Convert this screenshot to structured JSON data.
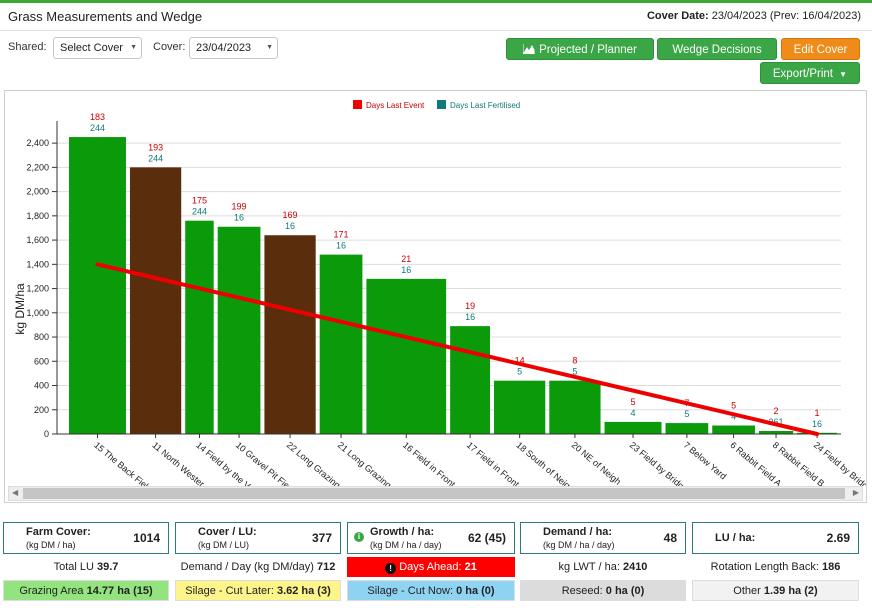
{
  "header": {
    "title": "Grass Measurements and Wedge",
    "cover_label": "Cover Date:",
    "cover_value": "23/04/2023 (Prev: 16/04/2023)"
  },
  "controls": {
    "shared_label": "Shared:",
    "shared_value": "Select Cover",
    "cover_label": "Cover:",
    "cover_value": "23/04/2023"
  },
  "buttons": {
    "projected": "Projected / Planner",
    "wedge": "Wedge Decisions",
    "edit": "Edit Cover",
    "export": "Export/Print"
  },
  "colors": {
    "green_bar": "#0a9a0a",
    "brown_bar": "#5a2d0c",
    "wedge_line": "#ee0000",
    "event_label": "#cc0000",
    "fert_label": "#0e7a7a",
    "accent": "#3aa646"
  },
  "chart_data": {
    "type": "bar",
    "ylabel": "kg DM/ha",
    "ylim": [
      0,
      2500
    ],
    "yticks": [
      0,
      200,
      400,
      600,
      800,
      1000,
      1200,
      1400,
      1600,
      1800,
      2000,
      2200,
      2400
    ],
    "ytick_labels": [
      "0",
      "200",
      "400",
      "600",
      "800",
      "1,000",
      "1,200",
      "1,400",
      "1,600",
      "1,800",
      "2,000",
      "2,200",
      "2,400"
    ],
    "legend": [
      "Days Last Event",
      "Days Last Fertilised"
    ],
    "legend_position": "top-center",
    "grid": true,
    "bars": [
      {
        "label": "15 The Back Fiel",
        "value": 2450,
        "kind": "grazing",
        "weight": 1.0,
        "event": "183",
        "fert": "244"
      },
      {
        "label": "11 North Wester",
        "value": 2200,
        "kind": "silage",
        "weight": 0.9,
        "event": "193",
        "fert": "244"
      },
      {
        "label": "14 Field by the V",
        "value": 1760,
        "kind": "grazing",
        "weight": 0.5,
        "event": "175",
        "fert": "244"
      },
      {
        "label": "10 Gravel Pit Fie",
        "value": 1710,
        "kind": "grazing",
        "weight": 0.75,
        "event": "199",
        "fert": "16"
      },
      {
        "label": "22 Long Grazing",
        "value": 1640,
        "kind": "silage",
        "weight": 0.9,
        "event": "169",
        "fert": "16"
      },
      {
        "label": "21 Long Grazing",
        "value": 1480,
        "kind": "grazing",
        "weight": 0.75,
        "event": "171",
        "fert": "16"
      },
      {
        "label": "16 Field in Front",
        "value": 1280,
        "kind": "grazing",
        "weight": 1.4,
        "event": "21",
        "fert": "16"
      },
      {
        "label": "17 Field in Front",
        "value": 890,
        "kind": "grazing",
        "weight": 0.7,
        "event": "19",
        "fert": "16"
      },
      {
        "label": "18 South of Neig",
        "value": 440,
        "kind": "grazing",
        "weight": 0.9,
        "event": "14",
        "fert": "5"
      },
      {
        "label": "20 NE of Neigh",
        "value": 440,
        "kind": "grazing",
        "weight": 0.9,
        "event": "8",
        "fert": "5"
      },
      {
        "label": "23 Field by Bridg",
        "value": 100,
        "kind": "grazing",
        "weight": 1.0,
        "event": "5",
        "fert": "4"
      },
      {
        "label": "7 Below Yard",
        "value": 90,
        "kind": "grazing",
        "weight": 0.75,
        "event": "7",
        "fert": "5"
      },
      {
        "label": "6 Rabbit Field A",
        "value": 70,
        "kind": "grazing",
        "weight": 0.75,
        "event": "5",
        "fert": "4"
      },
      {
        "label": "8 Rabbit Field B",
        "value": 25,
        "kind": "grazing",
        "weight": 0.6,
        "event": "2",
        "fert": "261"
      },
      {
        "label": "24 Field by Bridg",
        "value": 10,
        "kind": "grazing",
        "weight": 0.7,
        "event": "1",
        "fert": "16"
      }
    ],
    "wedge_line": {
      "start": 1400,
      "end": 0
    }
  },
  "cards": [
    {
      "t1": "Farm Cover:",
      "t2": "(kg DM / ha)",
      "v": "1014"
    },
    {
      "t1": "Cover / LU:",
      "t2": "(kg DM / LU)",
      "v": "377"
    },
    {
      "t1": "Growth / ha:",
      "t2": "(kg DM / ha / day)",
      "v": "62 (45)"
    },
    {
      "t1": "Demand / ha:",
      "t2": "(kg DM / ha / day)",
      "v": "48"
    },
    {
      "t1": "LU / ha:",
      "t2": "",
      "v": "2.69"
    }
  ],
  "info_row1": [
    {
      "label": "Total LU",
      "value": "39.7"
    },
    {
      "label": "Demand / Day (kg DM/day)",
      "value": "712"
    },
    {
      "label": "Days Ahead:",
      "value": "21"
    },
    {
      "label": "kg LWT / ha:",
      "value": "2410"
    },
    {
      "label": "Rotation Length Back:",
      "value": "186"
    }
  ],
  "info_row2": [
    {
      "label": "Grazing Area",
      "value": "14.77 ha (15)"
    },
    {
      "label": "Silage - Cut Later:",
      "value": "3.62 ha (3)"
    },
    {
      "label": "Silage - Cut Now:",
      "value": "0 ha (0)"
    },
    {
      "label": "Reseed:",
      "value": "0 ha (0)"
    },
    {
      "label": "Other",
      "value": "1.39 ha (2)"
    }
  ]
}
